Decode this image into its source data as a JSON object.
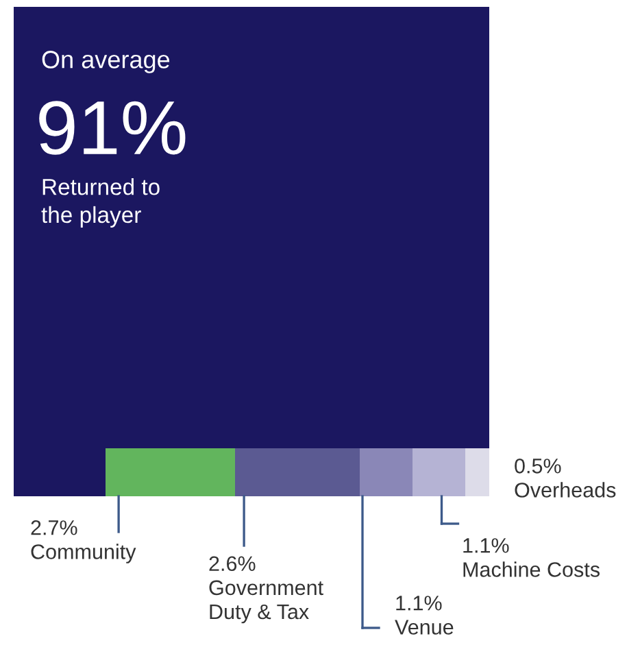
{
  "chart_data": {
    "type": "other",
    "annotations": [
      "On average"
    ],
    "categories": [
      "Returned to\nthe player",
      "Community",
      "Government\nDuty & Tax",
      "Venue",
      "Machine Costs",
      "Overheads"
    ],
    "values": [
      91,
      2.7,
      2.6,
      1.1,
      1.1,
      0.5
    ],
    "value_labels": [
      "91%",
      "2.7%",
      "2.6%",
      "1.1%",
      "1.1%",
      "0.5%"
    ],
    "colors": [
      "#1b1760",
      "#62b55d",
      "#5b5a92",
      "#8a87b7",
      "#b5b3d4",
      "#dddce9"
    ]
  }
}
